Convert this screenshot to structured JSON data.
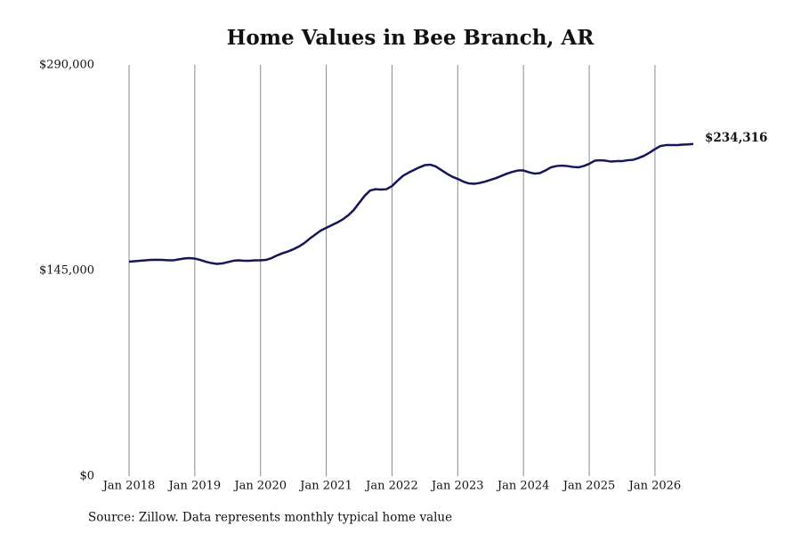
{
  "chart_data": {
    "type": "line",
    "title": "Home Values in Bee Branch, AR",
    "source": "Source: Zillow. Data represents monthly typical home value",
    "color": "#15155e",
    "grid": true,
    "x": [
      "2018-01",
      "2018-02",
      "2018-03",
      "2018-04",
      "2018-05",
      "2018-06",
      "2018-07",
      "2018-08",
      "2018-09",
      "2018-10",
      "2018-11",
      "2018-12",
      "2019-01",
      "2019-02",
      "2019-03",
      "2019-04",
      "2019-05",
      "2019-06",
      "2019-07",
      "2019-08",
      "2019-09",
      "2019-10",
      "2019-11",
      "2019-12",
      "2020-01",
      "2020-02",
      "2020-03",
      "2020-04",
      "2020-05",
      "2020-06",
      "2020-07",
      "2020-08",
      "2020-09",
      "2020-10",
      "2020-11",
      "2020-12",
      "2021-01",
      "2021-02",
      "2021-03",
      "2021-04",
      "2021-05",
      "2021-06",
      "2021-07",
      "2021-08",
      "2021-09",
      "2021-10",
      "2021-11",
      "2021-12",
      "2022-01",
      "2022-02",
      "2022-03",
      "2022-04",
      "2022-05",
      "2022-06",
      "2022-07",
      "2022-08",
      "2022-09",
      "2022-10",
      "2022-11",
      "2022-12",
      "2023-01",
      "2023-02",
      "2023-03",
      "2023-04",
      "2023-05",
      "2023-06",
      "2023-07",
      "2023-08",
      "2023-09",
      "2023-10",
      "2023-11",
      "2023-12",
      "2024-01",
      "2024-02",
      "2024-03",
      "2024-04",
      "2024-05",
      "2024-06",
      "2024-07",
      "2024-08",
      "2024-09",
      "2024-10",
      "2024-11",
      "2024-12",
      "2025-01",
      "2025-02",
      "2025-03",
      "2025-04",
      "2025-05",
      "2025-06",
      "2025-07",
      "2025-08",
      "2025-09",
      "2025-10",
      "2025-11",
      "2025-12",
      "2026-01",
      "2026-02",
      "2026-03",
      "2026-04",
      "2026-05",
      "2026-06",
      "2026-07",
      "2026-08"
    ],
    "values": [
      151250,
      151570,
      151880,
      152190,
      152510,
      152630,
      152510,
      152320,
      152190,
      152820,
      153450,
      153760,
      153450,
      152510,
      151250,
      150310,
      149680,
      150000,
      150940,
      151880,
      152190,
      151880,
      151880,
      152190,
      152190,
      152510,
      153760,
      155640,
      157210,
      158470,
      160040,
      161920,
      164430,
      167570,
      170390,
      173220,
      175100,
      176980,
      178870,
      181060,
      183890,
      187650,
      192670,
      197690,
      201460,
      202400,
      202090,
      202400,
      204600,
      208360,
      211820,
      214010,
      215890,
      217780,
      219350,
      219660,
      218400,
      215890,
      213380,
      211190,
      209620,
      207740,
      206480,
      206170,
      206800,
      207740,
      208990,
      210250,
      211820,
      213380,
      214640,
      215580,
      215580,
      214330,
      213380,
      213700,
      215580,
      217780,
      218720,
      219030,
      218720,
      218090,
      217780,
      218720,
      220290,
      222490,
      222800,
      222490,
      221860,
      222170,
      222170,
      222800,
      223110,
      224370,
      225940,
      228130,
      230640,
      232840,
      233470,
      233470,
      233470,
      233800,
      234000,
      234316
    ],
    "value_labels": [
      null,
      null,
      null,
      null,
      null,
      null,
      null,
      null,
      null,
      null,
      null,
      null,
      null,
      null,
      null,
      null,
      null,
      null,
      null,
      null,
      null,
      null,
      null,
      null,
      null,
      null,
      null,
      null,
      null,
      null,
      null,
      null,
      null,
      null,
      null,
      null,
      null,
      null,
      null,
      null,
      null,
      null,
      null,
      null,
      null,
      null,
      null,
      null,
      null,
      null,
      null,
      null,
      null,
      null,
      null,
      null,
      null,
      null,
      null,
      null,
      null,
      null,
      null,
      null,
      null,
      null,
      null,
      null,
      null,
      null,
      null,
      null,
      null,
      null,
      null,
      null,
      null,
      null,
      null,
      null,
      null,
      null,
      null,
      null,
      null,
      null,
      null,
      null,
      null,
      null,
      null,
      null,
      null,
      null,
      null,
      null,
      null,
      null,
      null,
      null,
      null,
      null,
      null,
      "$234,316"
    ],
    "xticks": [
      {
        "value": "2018-01",
        "label": "Jan 2018"
      },
      {
        "value": "2019-01",
        "label": "Jan 2019"
      },
      {
        "value": "2020-01",
        "label": "Jan 2020"
      },
      {
        "value": "2021-01",
        "label": "Jan 2021"
      },
      {
        "value": "2022-01",
        "label": "Jan 2022"
      },
      {
        "value": "2023-01",
        "label": "Jan 2023"
      },
      {
        "value": "2024-01",
        "label": "Jan 2024"
      },
      {
        "value": "2025-01",
        "label": "Jan 2025"
      },
      {
        "value": "2026-01",
        "label": "Jan 2026"
      }
    ],
    "ylim": [
      0,
      290000
    ],
    "yticks": [
      {
        "value": 0,
        "label": "$0"
      },
      {
        "value": 145000,
        "label": "$145,000"
      },
      {
        "value": 290000,
        "label": "$290,000"
      }
    ]
  }
}
